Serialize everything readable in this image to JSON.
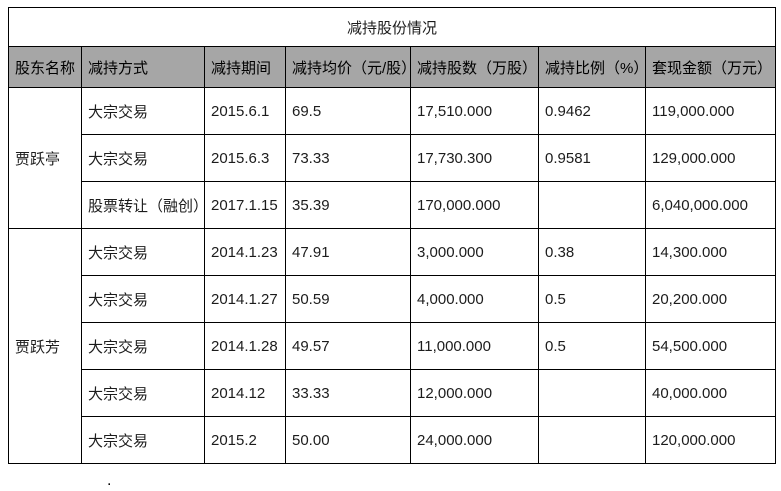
{
  "table": {
    "title": "减持股份情况",
    "columns": [
      "股东名称",
      "减持方式",
      "减持期间",
      "减持均价（元/股）",
      "减持股数（万股）",
      "减持比例（%）",
      "套现金额（万元）"
    ],
    "groups": [
      {
        "shareholder": "贾跃亭",
        "rows": [
          [
            "大宗交易",
            "2015.6.1",
            "69.5",
            "17,510.000",
            "0.9462",
            "119,000.000"
          ],
          [
            "大宗交易",
            "2015.6.3",
            "73.33",
            "17,730.300",
            "0.9581",
            "129,000.000"
          ],
          [
            "股票转让（融创）",
            "2017.1.15",
            "35.39",
            "170,000.000",
            "",
            "6,040,000.000"
          ]
        ]
      },
      {
        "shareholder": "贾跃芳",
        "rows": [
          [
            "大宗交易",
            "2014.1.23",
            "47.91",
            "3,000.000",
            "0.38",
            "14,300.000"
          ],
          [
            "大宗交易",
            "2014.1.27",
            "50.59",
            "4,000.000",
            "0.5",
            "20,200.000"
          ],
          [
            "大宗交易",
            "2014.1.28",
            "49.57",
            "11,000.000",
            "0.5",
            "54,500.000"
          ],
          [
            "大宗交易",
            "2014.12",
            "33.33",
            "12,000.000",
            "",
            "40,000.000"
          ],
          [
            "大宗交易",
            "2015.2",
            "50.00",
            "24,000.000",
            "",
            "120,000.000"
          ]
        ]
      }
    ],
    "stray_mark": "."
  }
}
